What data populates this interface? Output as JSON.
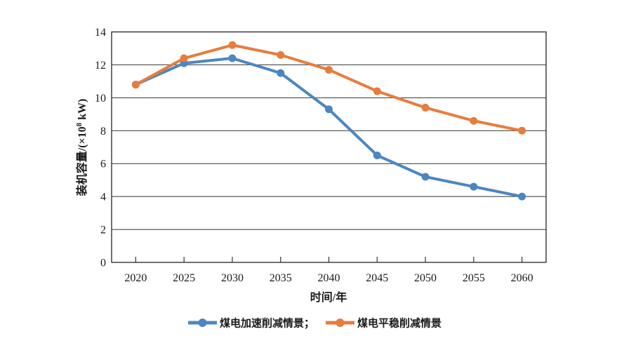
{
  "chart_data": {
    "type": "line",
    "title": "",
    "x_categories": [
      "2020",
      "2025",
      "2030",
      "2035",
      "2040",
      "2045",
      "2050",
      "2055",
      "2060"
    ],
    "series": [
      {
        "name": "煤电加速削减情景",
        "color": "#4C86C2",
        "values": [
          10.8,
          12.1,
          12.4,
          11.5,
          9.3,
          6.5,
          5.2,
          4.6,
          4.0
        ]
      },
      {
        "name": "煤电平稳削减情景",
        "color": "#E87C3C",
        "values": [
          10.8,
          12.4,
          13.2,
          12.6,
          11.7,
          10.4,
          9.4,
          8.6,
          8.0
        ]
      }
    ],
    "xlabel": "时间/年",
    "ylabel": "装机容量/(×10⁸ kW)",
    "ylabel_parts": {
      "prefix": "装机容量/(×10",
      "sup": "8",
      "suffix": " kW)"
    },
    "ylim": [
      0,
      14
    ],
    "yticks": [
      0,
      2,
      4,
      6,
      8,
      10,
      12,
      14
    ],
    "grid": "horizontal",
    "axis_color": "#333333",
    "plot_background": "#ffffff",
    "legend": {
      "position": "bottom",
      "labels": [
        "煤电加速削减情景；",
        "煤电平稳削减情景"
      ]
    }
  }
}
